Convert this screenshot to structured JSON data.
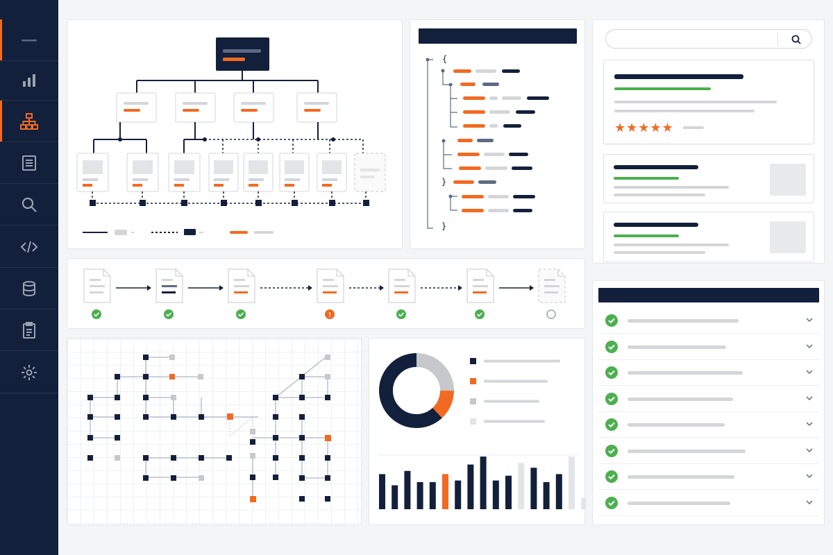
{
  "sidebar": {
    "items": [
      {
        "icon": "menu-icon"
      },
      {
        "icon": "bar-chart-icon"
      },
      {
        "icon": "sitemap-icon",
        "active": true
      },
      {
        "icon": "document-icon"
      },
      {
        "icon": "search-icon"
      },
      {
        "icon": "code-icon"
      },
      {
        "icon": "database-icon"
      },
      {
        "icon": "clipboard-icon"
      },
      {
        "icon": "gear-icon"
      }
    ]
  },
  "code_panel": {
    "open_brace": "{",
    "close_brace_inner": "}",
    "close_brace_outer": "}"
  },
  "pipeline": {
    "steps": [
      {
        "status": "success"
      },
      {
        "status": "success"
      },
      {
        "status": "success"
      },
      {
        "status": "warning"
      },
      {
        "status": "success"
      },
      {
        "status": "success"
      },
      {
        "status": "pending"
      }
    ],
    "warning_mark": "!"
  },
  "search": {
    "placeholder": ""
  },
  "featured_result": {
    "rating": 5,
    "stars": "★★★★★"
  },
  "donut": {
    "segments": [
      {
        "color": "#13203b",
        "value": 62
      },
      {
        "color": "#f26a21",
        "value": 13
      },
      {
        "color": "#c6c8cc",
        "value": 25
      }
    ]
  },
  "bar_series": {
    "values": [
      {
        "v": 44,
        "c": "navy"
      },
      {
        "v": 30,
        "c": "navy"
      },
      {
        "v": 48,
        "c": "navy"
      },
      {
        "v": 34,
        "c": "navy"
      },
      {
        "v": 34,
        "c": "navy"
      },
      {
        "v": 44,
        "c": "orange"
      },
      {
        "v": 36,
        "c": "navy"
      },
      {
        "v": 56,
        "c": "navy"
      },
      {
        "v": 66,
        "c": "navy"
      },
      {
        "v": 36,
        "c": "navy"
      },
      {
        "v": 42,
        "c": "navy"
      },
      {
        "v": 58,
        "c": "lgrey"
      },
      {
        "v": 52,
        "c": "navy"
      },
      {
        "v": 34,
        "c": "navy"
      },
      {
        "v": 44,
        "c": "navy"
      },
      {
        "v": 66,
        "c": "lgrey"
      },
      {
        "v": 14,
        "c": "lgrey"
      }
    ]
  },
  "checklist": {
    "items": [
      1,
      2,
      3,
      4,
      5,
      6,
      7,
      8
    ]
  },
  "colors": {
    "navy": "#13203b",
    "orange": "#f26a21",
    "green": "#4caf50",
    "grey": "#d3d5d9"
  }
}
